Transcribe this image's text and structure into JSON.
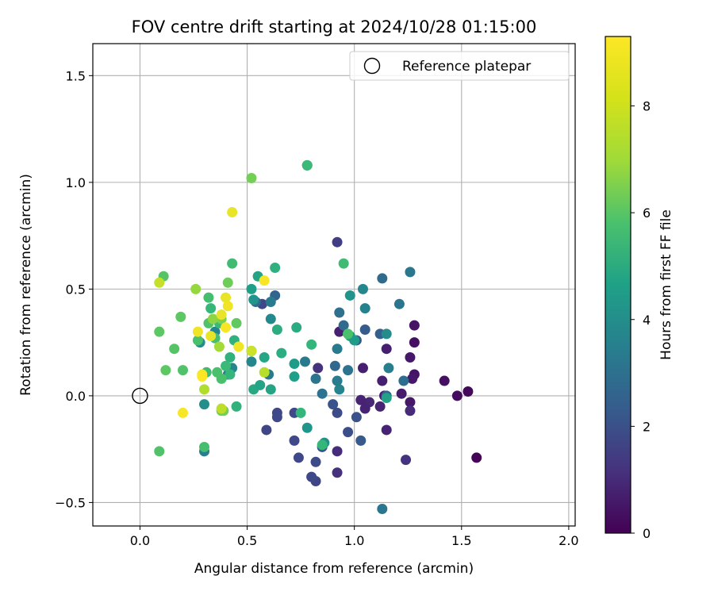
{
  "chart_data": {
    "type": "scatter",
    "title": "FOV centre drift starting at 2024/10/28 01:15:00",
    "xlabel": "Angular distance from reference (arcmin)",
    "ylabel": "Rotation from reference (arcmin)",
    "xlim": [
      -0.22,
      2.03
    ],
    "ylim": [
      -0.61,
      1.65
    ],
    "xticks": [
      0.0,
      0.5,
      1.0,
      1.5,
      2.0
    ],
    "xtick_labels": [
      "0.0",
      "0.5",
      "1.0",
      "1.5",
      "2.0"
    ],
    "yticks": [
      -0.5,
      0.0,
      0.5,
      1.0,
      1.5
    ],
    "ytick_labels": [
      "−0.5",
      "0.0",
      "0.5",
      "1.0",
      "1.5"
    ],
    "grid": true,
    "legend": {
      "position": "top-right",
      "entries": [
        "Reference platepar"
      ]
    },
    "reference_point": {
      "x": 0.0,
      "y": 0.0
    },
    "colorbar": {
      "label": "Hours from first FF file",
      "range": [
        0,
        9.3
      ],
      "ticks": [
        0,
        2,
        4,
        6,
        8
      ],
      "tick_labels": [
        "0",
        "2",
        "4",
        "6",
        "8"
      ],
      "colormap": "viridis"
    },
    "points": [
      {
        "x": 1.57,
        "y": -0.29,
        "h": 0.1
      },
      {
        "x": 1.53,
        "y": 0.02,
        "h": 0.2
      },
      {
        "x": 1.48,
        "y": 0.0,
        "h": 0.3
      },
      {
        "x": 1.42,
        "y": 0.07,
        "h": 0.4
      },
      {
        "x": 1.28,
        "y": 0.33,
        "h": 0.5
      },
      {
        "x": 1.28,
        "y": 0.25,
        "h": 0.4
      },
      {
        "x": 1.28,
        "y": 0.1,
        "h": 0.5
      },
      {
        "x": 1.27,
        "y": 0.08,
        "h": 0.6
      },
      {
        "x": 1.26,
        "y": 0.18,
        "h": 0.6
      },
      {
        "x": 1.26,
        "y": -0.03,
        "h": 0.6
      },
      {
        "x": 1.26,
        "y": -0.07,
        "h": 1.1
      },
      {
        "x": 1.24,
        "y": -0.3,
        "h": 1.4
      },
      {
        "x": 1.22,
        "y": 0.01,
        "h": 0.7
      },
      {
        "x": 1.15,
        "y": 0.22,
        "h": 0.8
      },
      {
        "x": 1.15,
        "y": -0.16,
        "h": 0.9
      },
      {
        "x": 1.14,
        "y": 0.0,
        "h": 0.8
      },
      {
        "x": 1.13,
        "y": 0.07,
        "h": 0.8
      },
      {
        "x": 1.12,
        "y": -0.05,
        "h": 0.9
      },
      {
        "x": 1.07,
        "y": -0.03,
        "h": 1.0
      },
      {
        "x": 1.05,
        "y": -0.06,
        "h": 0.9
      },
      {
        "x": 1.04,
        "y": 0.13,
        "h": 0.8
      },
      {
        "x": 1.03,
        "y": -0.02,
        "h": 0.9
      },
      {
        "x": 0.93,
        "y": 0.3,
        "h": 0.8
      },
      {
        "x": 0.92,
        "y": 0.72,
        "h": 1.7
      },
      {
        "x": 0.92,
        "y": -0.26,
        "h": 1.2
      },
      {
        "x": 0.92,
        "y": -0.36,
        "h": 1.3
      },
      {
        "x": 0.83,
        "y": 0.13,
        "h": 1.4
      },
      {
        "x": 0.82,
        "y": -0.4,
        "h": 1.9
      },
      {
        "x": 0.8,
        "y": -0.38,
        "h": 2.0
      },
      {
        "x": 0.78,
        "y": 1.08,
        "h": 2.0
      },
      {
        "x": 0.59,
        "y": -0.16,
        "h": 1.9
      },
      {
        "x": 0.64,
        "y": -0.08,
        "h": 2.0
      },
      {
        "x": 0.64,
        "y": -0.1,
        "h": 2.0
      },
      {
        "x": 0.57,
        "y": 0.43,
        "h": 2.0
      },
      {
        "x": 0.72,
        "y": -0.08,
        "h": 2.0
      },
      {
        "x": 0.72,
        "y": -0.21,
        "h": 2.0
      },
      {
        "x": 0.74,
        "y": -0.29,
        "h": 2.0
      },
      {
        "x": 0.82,
        "y": -0.31,
        "h": 2.1
      },
      {
        "x": 0.85,
        "y": -0.24,
        "h": 2.3
      },
      {
        "x": 0.9,
        "y": -0.04,
        "h": 2.4
      },
      {
        "x": 0.92,
        "y": -0.08,
        "h": 2.1
      },
      {
        "x": 0.97,
        "y": -0.17,
        "h": 2.2
      },
      {
        "x": 1.01,
        "y": -0.1,
        "h": 2.3
      },
      {
        "x": 1.03,
        "y": -0.21,
        "h": 2.6
      },
      {
        "x": 1.01,
        "y": 0.26,
        "h": 2.5
      },
      {
        "x": 1.05,
        "y": 0.31,
        "h": 2.7
      },
      {
        "x": 1.12,
        "y": 0.29,
        "h": 2.8
      },
      {
        "x": 1.13,
        "y": 0.55,
        "h": 3.2
      },
      {
        "x": 1.15,
        "y": 0.0,
        "h": 3.0
      },
      {
        "x": 1.13,
        "y": -0.53,
        "h": 3.6
      },
      {
        "x": 1.21,
        "y": 0.43,
        "h": 3.6
      },
      {
        "x": 1.23,
        "y": 0.07,
        "h": 3.3
      },
      {
        "x": 1.26,
        "y": 0.58,
        "h": 3.7
      },
      {
        "x": 0.93,
        "y": 0.39,
        "h": 3.4
      },
      {
        "x": 0.95,
        "y": 0.33,
        "h": 3.2
      },
      {
        "x": 0.97,
        "y": 0.12,
        "h": 3.5
      },
      {
        "x": 0.91,
        "y": 0.14,
        "h": 3.1
      },
      {
        "x": 0.92,
        "y": 0.22,
        "h": 3.8
      },
      {
        "x": 0.85,
        "y": 0.01,
        "h": 3.5
      },
      {
        "x": 0.82,
        "y": 0.08,
        "h": 3.6
      },
      {
        "x": 0.93,
        "y": 0.03,
        "h": 4.2
      },
      {
        "x": 0.92,
        "y": 0.07,
        "h": 3.9
      },
      {
        "x": 0.86,
        "y": -0.22,
        "h": 4.7
      },
      {
        "x": 0.77,
        "y": 0.16,
        "h": 3.8
      },
      {
        "x": 0.78,
        "y": -0.15,
        "h": 4.8
      },
      {
        "x": 1.04,
        "y": 0.5,
        "h": 4.3
      },
      {
        "x": 1.05,
        "y": 0.41,
        "h": 4.1
      },
      {
        "x": 1.16,
        "y": 0.13,
        "h": 4.0
      },
      {
        "x": 1.15,
        "y": 0.29,
        "h": 4.5
      },
      {
        "x": 1.15,
        "y": -0.01,
        "h": 5.3
      },
      {
        "x": 0.54,
        "y": 0.44,
        "h": 3.2
      },
      {
        "x": 0.63,
        "y": 0.47,
        "h": 3.0
      },
      {
        "x": 0.61,
        "y": 0.44,
        "h": 3.8
      },
      {
        "x": 0.61,
        "y": 0.36,
        "h": 4.4
      },
      {
        "x": 0.6,
        "y": 0.1,
        "h": 3.8
      },
      {
        "x": 0.52,
        "y": 0.16,
        "h": 4.3
      },
      {
        "x": 0.53,
        "y": 0.45,
        "h": 4.8
      },
      {
        "x": 0.41,
        "y": 0.1,
        "h": 4.0
      },
      {
        "x": 0.43,
        "y": 0.13,
        "h": 4.2
      },
      {
        "x": 0.35,
        "y": 0.3,
        "h": 4.3
      },
      {
        "x": 0.3,
        "y": -0.26,
        "h": 4.0
      },
      {
        "x": 0.28,
        "y": 0.25,
        "h": 4.5
      },
      {
        "x": 0.3,
        "y": -0.04,
        "h": 4.6
      },
      {
        "x": 0.98,
        "y": 0.47,
        "h": 4.8
      },
      {
        "x": 0.98,
        "y": 0.28,
        "h": 5.0
      },
      {
        "x": 1.0,
        "y": 0.26,
        "h": 5.1
      },
      {
        "x": 0.72,
        "y": 0.15,
        "h": 5.1
      },
      {
        "x": 0.72,
        "y": 0.09,
        "h": 5.2
      },
      {
        "x": 0.52,
        "y": 0.5,
        "h": 5.2
      },
      {
        "x": 0.55,
        "y": 0.56,
        "h": 5.4
      },
      {
        "x": 0.52,
        "y": 0.21,
        "h": 5.6
      },
      {
        "x": 0.53,
        "y": 0.03,
        "h": 5.6
      },
      {
        "x": 0.56,
        "y": 0.05,
        "h": 5.4
      },
      {
        "x": 0.58,
        "y": 0.18,
        "h": 5.5
      },
      {
        "x": 0.61,
        "y": 0.03,
        "h": 5.4
      },
      {
        "x": 0.63,
        "y": 0.6,
        "h": 5.9
      },
      {
        "x": 0.64,
        "y": 0.31,
        "h": 5.8
      },
      {
        "x": 0.66,
        "y": 0.2,
        "h": 5.8
      },
      {
        "x": 0.73,
        "y": 0.32,
        "h": 5.7
      },
      {
        "x": 0.75,
        "y": -0.08,
        "h": 6.1
      },
      {
        "x": 0.8,
        "y": 0.24,
        "h": 6.1
      },
      {
        "x": 0.85,
        "y": -0.23,
        "h": 6.2
      },
      {
        "x": 0.95,
        "y": 0.62,
        "h": 6.4
      },
      {
        "x": 0.97,
        "y": 0.29,
        "h": 6.6
      },
      {
        "x": 0.78,
        "y": 1.08,
        "h": 6.3
      },
      {
        "x": 0.44,
        "y": 0.26,
        "h": 5.9
      },
      {
        "x": 0.42,
        "y": 0.18,
        "h": 6.0
      },
      {
        "x": 0.42,
        "y": 0.1,
        "h": 6.1
      },
      {
        "x": 0.45,
        "y": -0.05,
        "h": 6.0
      },
      {
        "x": 0.4,
        "y": 0.14,
        "h": 6.3
      },
      {
        "x": 0.43,
        "y": 0.62,
        "h": 6.4
      },
      {
        "x": 0.32,
        "y": 0.46,
        "h": 6.5
      },
      {
        "x": 0.33,
        "y": 0.41,
        "h": 6.2
      },
      {
        "x": 0.32,
        "y": 0.34,
        "h": 6.7
      },
      {
        "x": 0.37,
        "y": 0.34,
        "h": 6.3
      },
      {
        "x": 0.35,
        "y": 0.27,
        "h": 6.5
      },
      {
        "x": 0.27,
        "y": 0.26,
        "h": 6.6
      },
      {
        "x": 0.31,
        "y": 0.11,
        "h": 6.4
      },
      {
        "x": 0.36,
        "y": 0.11,
        "h": 6.6
      },
      {
        "x": 0.38,
        "y": 0.08,
        "h": 6.6
      },
      {
        "x": 0.3,
        "y": -0.24,
        "h": 6.5
      },
      {
        "x": 0.19,
        "y": 0.37,
        "h": 6.9
      },
      {
        "x": 0.16,
        "y": 0.22,
        "h": 6.8
      },
      {
        "x": 0.2,
        "y": 0.12,
        "h": 6.7
      },
      {
        "x": 0.12,
        "y": 0.12,
        "h": 6.9
      },
      {
        "x": 0.11,
        "y": 0.56,
        "h": 6.8
      },
      {
        "x": 0.09,
        "y": 0.3,
        "h": 6.9
      },
      {
        "x": 0.09,
        "y": -0.26,
        "h": 6.7
      },
      {
        "x": 0.45,
        "y": 0.34,
        "h": 7.0
      },
      {
        "x": 0.41,
        "y": 0.53,
        "h": 7.2
      },
      {
        "x": 0.38,
        "y": 0.36,
        "h": 7.4
      },
      {
        "x": 0.38,
        "y": -0.07,
        "h": 7.2
      },
      {
        "x": 0.39,
        "y": -0.07,
        "h": 7.3
      },
      {
        "x": 0.52,
        "y": 1.02,
        "h": 7.3
      },
      {
        "x": 0.26,
        "y": 0.5,
        "h": 7.8
      },
      {
        "x": 0.34,
        "y": 0.36,
        "h": 7.7
      },
      {
        "x": 0.37,
        "y": 0.23,
        "h": 8.0
      },
      {
        "x": 0.3,
        "y": 0.03,
        "h": 8.2
      },
      {
        "x": 0.58,
        "y": 0.11,
        "h": 8.3
      },
      {
        "x": 0.09,
        "y": 0.53,
        "h": 8.5
      },
      {
        "x": 0.52,
        "y": 0.21,
        "h": 8.6
      },
      {
        "x": 0.38,
        "y": -0.06,
        "h": 8.4
      },
      {
        "x": 0.43,
        "y": 0.86,
        "h": 9.0
      },
      {
        "x": 0.58,
        "y": 0.54,
        "h": 9.2
      },
      {
        "x": 0.4,
        "y": 0.46,
        "h": 9.0
      },
      {
        "x": 0.41,
        "y": 0.42,
        "h": 9.1
      },
      {
        "x": 0.38,
        "y": 0.38,
        "h": 9.0
      },
      {
        "x": 0.4,
        "y": 0.32,
        "h": 9.2
      },
      {
        "x": 0.33,
        "y": 0.28,
        "h": 9.0
      },
      {
        "x": 0.27,
        "y": 0.3,
        "h": 9.1
      },
      {
        "x": 0.46,
        "y": 0.23,
        "h": 9.1
      },
      {
        "x": 0.29,
        "y": 0.1,
        "h": 9.2
      },
      {
        "x": 0.29,
        "y": 0.09,
        "h": 9.3
      },
      {
        "x": 0.2,
        "y": -0.08,
        "h": 9.2
      }
    ]
  }
}
